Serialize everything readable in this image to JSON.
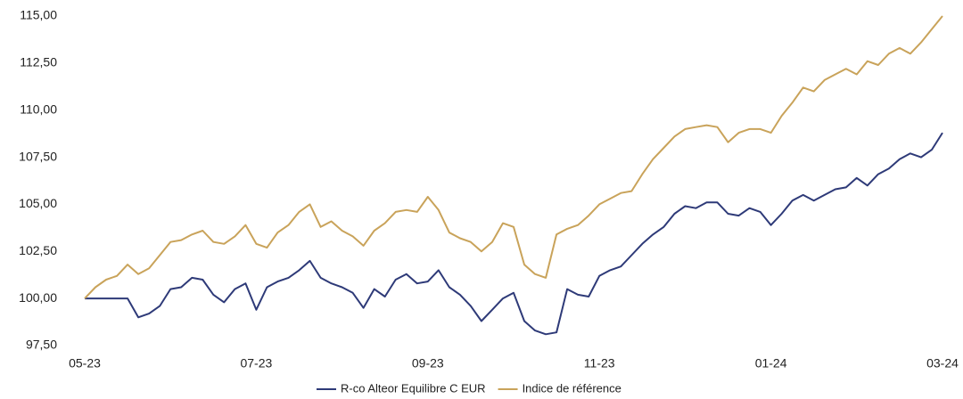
{
  "chart_data": {
    "type": "line",
    "categories": [
      "05-23",
      null,
      null,
      null,
      null,
      null,
      null,
      null,
      null,
      null,
      null,
      null,
      null,
      null,
      null,
      null,
      "07-23",
      null,
      null,
      null,
      null,
      null,
      null,
      null,
      null,
      null,
      null,
      null,
      null,
      null,
      null,
      null,
      "09-23",
      null,
      null,
      null,
      null,
      null,
      null,
      null,
      null,
      null,
      null,
      null,
      null,
      null,
      null,
      null,
      "11-23",
      null,
      null,
      null,
      null,
      null,
      null,
      null,
      null,
      null,
      null,
      null,
      null,
      null,
      null,
      null,
      "01-24",
      null,
      null,
      null,
      null,
      null,
      null,
      null,
      null,
      null,
      null,
      null,
      null,
      null,
      null,
      null,
      "03-24"
    ],
    "series": [
      {
        "name": "R-co Alteor Equilibre C EUR",
        "color": "#2e3a78",
        "values": [
          100.0,
          100.0,
          100.0,
          100.0,
          100.0,
          99.0,
          99.2,
          99.6,
          100.5,
          100.6,
          101.1,
          101.0,
          100.2,
          99.8,
          100.5,
          100.8,
          99.4,
          100.6,
          100.9,
          101.1,
          101.5,
          102.0,
          101.1,
          100.8,
          100.6,
          100.3,
          99.5,
          100.5,
          100.1,
          101.0,
          101.3,
          100.8,
          100.9,
          101.5,
          100.6,
          100.2,
          99.6,
          98.8,
          99.4,
          100.0,
          100.3,
          98.8,
          98.3,
          98.1,
          98.2,
          100.5,
          100.2,
          100.1,
          101.2,
          101.5,
          101.7,
          102.3,
          102.9,
          103.4,
          103.8,
          104.5,
          104.9,
          104.8,
          105.1,
          105.1,
          104.5,
          104.4,
          104.8,
          104.6,
          103.9,
          104.5,
          105.2,
          105.5,
          105.2,
          105.5,
          105.8,
          105.9,
          106.4,
          106.0,
          106.6,
          106.9,
          107.4,
          107.7,
          107.5,
          107.9,
          108.8
        ]
      },
      {
        "name": "Indice de référence",
        "color": "#c9a35a",
        "values": [
          100.0,
          100.6,
          101.0,
          101.2,
          101.8,
          101.3,
          101.6,
          102.3,
          103.0,
          103.1,
          103.4,
          103.6,
          103.0,
          102.9,
          103.3,
          103.9,
          102.9,
          102.7,
          103.5,
          103.9,
          104.6,
          105.0,
          103.8,
          104.1,
          103.6,
          103.3,
          102.8,
          103.6,
          104.0,
          104.6,
          104.7,
          104.6,
          105.4,
          104.7,
          103.5,
          103.2,
          103.0,
          102.5,
          103.0,
          104.0,
          103.8,
          101.8,
          101.3,
          101.1,
          103.4,
          103.7,
          103.9,
          104.4,
          105.0,
          105.3,
          105.6,
          105.7,
          106.6,
          107.4,
          108.0,
          108.6,
          109.0,
          109.1,
          109.2,
          109.1,
          108.3,
          108.8,
          109.0,
          109.0,
          108.8,
          109.7,
          110.4,
          111.2,
          111.0,
          111.6,
          111.9,
          112.2,
          111.9,
          112.6,
          112.4,
          113.0,
          113.3,
          113.0,
          113.6,
          114.3,
          115.0
        ]
      }
    ],
    "ylim": [
      97.5,
      115
    ],
    "yticks": [
      {
        "value": 97.5,
        "label": "97,50"
      },
      {
        "value": 100,
        "label": "100,00"
      },
      {
        "value": 102.5,
        "label": "102,50"
      },
      {
        "value": 105,
        "label": "105,00"
      },
      {
        "value": 107.5,
        "label": "107,50"
      },
      {
        "value": 110,
        "label": "110,00"
      },
      {
        "value": 112.5,
        "label": "112,50"
      },
      {
        "value": 115,
        "label": "115,00"
      }
    ],
    "grid": false
  }
}
